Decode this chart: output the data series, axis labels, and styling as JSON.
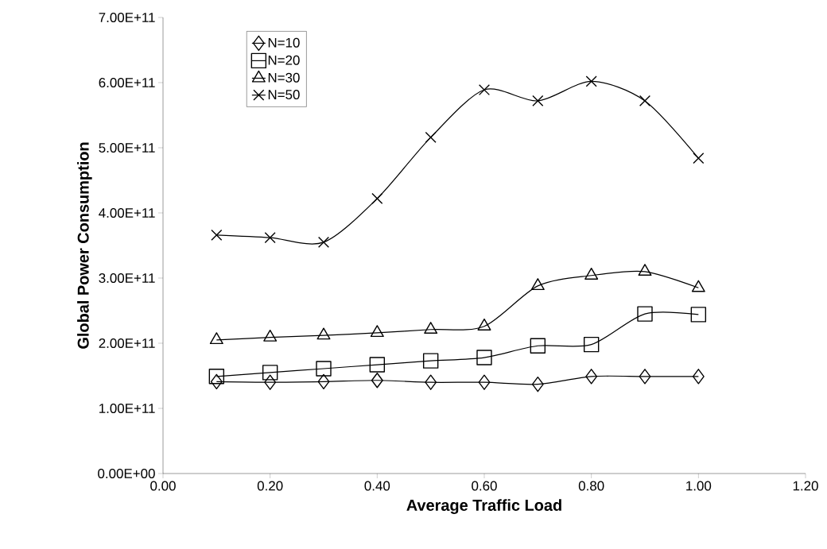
{
  "chart_data": {
    "type": "line",
    "xlabel": "Average Traffic Load",
    "ylabel": "Global Power Consumption",
    "x": [
      0.1,
      0.2,
      0.3,
      0.4,
      0.5,
      0.6,
      0.7,
      0.8,
      0.9,
      1.0
    ],
    "series": [
      {
        "name": "N=10",
        "color": "#000000",
        "marker": "diamond",
        "values": [
          141000000000.0,
          140000000000.0,
          141000000000.0,
          143000000000.0,
          140000000000.0,
          140000000000.0,
          137000000000.0,
          149000000000.0,
          149000000000.0,
          149000000000.0
        ]
      },
      {
        "name": "N=20",
        "color": "#000000",
        "marker": "square",
        "values": [
          149000000000.0,
          155000000000.0,
          161000000000.0,
          167000000000.0,
          173000000000.0,
          178000000000.0,
          196000000000.0,
          198000000000.0,
          245000000000.0,
          244000000000.0
        ]
      },
      {
        "name": "N=30",
        "color": "#000000",
        "marker": "triangle",
        "values": [
          205000000000.0,
          209000000000.0,
          212000000000.0,
          216000000000.0,
          221000000000.0,
          226000000000.0,
          288000000000.0,
          304000000000.0,
          310000000000.0,
          285000000000.0
        ]
      },
      {
        "name": "N=50",
        "color": "#000000",
        "marker": "cross",
        "values": [
          366000000000.0,
          362000000000.0,
          355000000000.0,
          422000000000.0,
          516000000000.0,
          589000000000.0,
          572000000000.0,
          602000000000.0,
          572000000000.0,
          484000000000.0
        ]
      }
    ],
    "xlim": [
      0,
      1.2
    ],
    "ylim": [
      0,
      700000000000.0
    ],
    "xticks": [
      {
        "value": 0,
        "label": "0.00"
      },
      {
        "value": 0.2,
        "label": "0.20"
      },
      {
        "value": 0.4,
        "label": "0.40"
      },
      {
        "value": 0.6,
        "label": "0.60"
      },
      {
        "value": 0.8,
        "label": "0.80"
      },
      {
        "value": 1.0,
        "label": "1.00"
      },
      {
        "value": 1.2,
        "label": "1.20"
      }
    ],
    "yticks": [
      {
        "value": 0,
        "label": "0.00E+00"
      },
      {
        "value": 100000000000.0,
        "label": "1.00E+11"
      },
      {
        "value": 200000000000.0,
        "label": "2.00E+11"
      },
      {
        "value": 300000000000.0,
        "label": "3.00E+11"
      },
      {
        "value": 400000000000.0,
        "label": "4.00E+11"
      },
      {
        "value": 500000000000.0,
        "label": "5.00E+11"
      },
      {
        "value": 600000000000.0,
        "label": "6.00E+11"
      },
      {
        "value": 700000000000.0,
        "label": "7.00E+11"
      }
    ],
    "grid": false,
    "legend": "top left",
    "line_style": "solid"
  }
}
